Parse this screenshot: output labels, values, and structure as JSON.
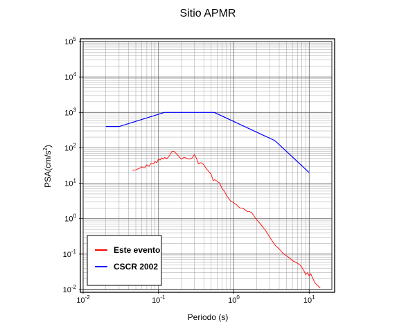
{
  "chart_data": {
    "type": "line",
    "title": "Sitio APMR",
    "xlabel": "Periodo (s)",
    "ylabel": "PSA(cm/s2)",
    "xscale": "log",
    "yscale": "log",
    "xlim": [
      0.01,
      20
    ],
    "ylim": [
      0.01,
      100000
    ],
    "grid": true,
    "legend_position": "bottom-left",
    "x_tick_labels": [
      {
        "base": "10",
        "exp": "-2",
        "value": 0.01
      },
      {
        "base": "10",
        "exp": "-1",
        "value": 0.1
      },
      {
        "base": "10",
        "exp": "0",
        "value": 1
      },
      {
        "base": "10",
        "exp": "1",
        "value": 10
      }
    ],
    "y_tick_labels": [
      {
        "base": "10",
        "exp": "-2",
        "value": 0.01
      },
      {
        "base": "10",
        "exp": "-1",
        "value": 0.1
      },
      {
        "base": "10",
        "exp": "0",
        "value": 1
      },
      {
        "base": "10",
        "exp": "1",
        "value": 10
      },
      {
        "base": "10",
        "exp": "2",
        "value": 100
      },
      {
        "base": "10",
        "exp": "3",
        "value": 1000
      },
      {
        "base": "10",
        "exp": "4",
        "value": 10000
      },
      {
        "base": "10",
        "exp": "5",
        "value": 100000
      }
    ],
    "series": [
      {
        "name": "Este evento",
        "color": "#ff0000",
        "x": [
          0.045,
          0.05,
          0.055,
          0.06,
          0.065,
          0.07,
          0.075,
          0.08,
          0.085,
          0.09,
          0.095,
          0.1,
          0.105,
          0.11,
          0.115,
          0.12,
          0.13,
          0.14,
          0.15,
          0.16,
          0.17,
          0.18,
          0.19,
          0.2,
          0.22,
          0.24,
          0.26,
          0.28,
          0.3,
          0.32,
          0.34,
          0.36,
          0.38,
          0.4,
          0.43,
          0.46,
          0.5,
          0.53,
          0.56,
          0.6,
          0.65,
          0.7,
          0.75,
          0.8,
          0.85,
          0.9,
          1.0,
          1.1,
          1.2,
          1.3,
          1.4,
          1.5,
          1.6,
          1.7,
          1.8,
          1.9,
          2.0,
          2.2,
          2.4,
          2.6,
          2.8,
          3.0,
          3.3,
          3.6,
          4.0,
          4.4,
          4.8,
          5.2,
          5.6,
          6.0,
          6.5,
          7.0,
          7.5,
          8.0,
          8.5,
          9.0,
          9.5,
          10.0,
          10.5,
          11.0,
          12.0,
          13.0,
          14.0
        ],
        "y": [
          23,
          24,
          26,
          29,
          27,
          33,
          30,
          37,
          35,
          41,
          38,
          48,
          45,
          52,
          48,
          53,
          50,
          60,
          78,
          80,
          70,
          62,
          55,
          48,
          54,
          50,
          48,
          52,
          65,
          50,
          35,
          38,
          37,
          33,
          26,
          22,
          18,
          12,
          12.5,
          11.5,
          10,
          7,
          6,
          4.5,
          3.8,
          3.2,
          2.8,
          2.4,
          2.0,
          2.0,
          1.8,
          1.6,
          1.6,
          1.5,
          1.3,
          1.1,
          0.95,
          0.75,
          0.6,
          0.48,
          0.38,
          0.3,
          0.22,
          0.17,
          0.14,
          0.11,
          0.095,
          0.085,
          0.075,
          0.065,
          0.06,
          0.055,
          0.05,
          0.042,
          0.034,
          0.026,
          0.03,
          0.024,
          0.028,
          0.022,
          0.015,
          0.013,
          0.011
        ]
      },
      {
        "name": "CSCR 2002",
        "color": "#0000ff",
        "x": [
          0.02,
          0.03,
          0.12,
          0.55,
          3.5,
          10.0
        ],
        "y": [
          400,
          400,
          1000,
          1000,
          160,
          20
        ]
      }
    ]
  }
}
